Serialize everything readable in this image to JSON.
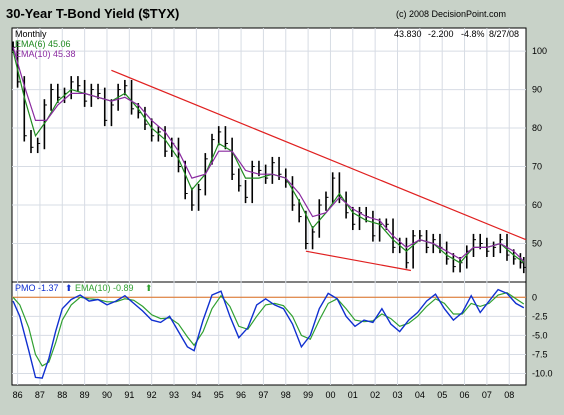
{
  "header": {
    "title": "30-Year T-Bond Yield ($TYX)",
    "copyright": "(c) 2008 DecisionPoint.com",
    "period": "Monthly",
    "quote_last": "43.830",
    "quote_change": "-2.200",
    "quote_pct": "-4.8%",
    "quote_date": "8/27/08"
  },
  "colors": {
    "background": "#c8d2c8",
    "panel": "#ffffff",
    "grid": "#d7dce4",
    "bar": "#000000",
    "ema_short": "#1f8a1f",
    "ema_long": "#8a2aa0",
    "trendline": "#e02020",
    "pmo": "#1030d0",
    "pmo_signal": "#30a030",
    "zero_line": "#e07020"
  },
  "legend": {
    "ema6": "EMA(6) 45.06",
    "ema10": "EMA(10) 45.38",
    "pmo": "PMO -1.37",
    "pmo_arrow": "⬆",
    "pmo_ema": "EMA(10) -0.89",
    "pmo_ema_arrow": "⬆"
  },
  "chart_data": [
    {
      "type": "line",
      "panel": "price",
      "title": "30-Year T-Bond Yield ($TYX)",
      "ylim": [
        40,
        106
      ],
      "y_ticks": [
        50,
        60,
        70,
        80,
        90,
        100
      ],
      "x_range": [
        1985.75,
        2008.75
      ],
      "x_tick_labels": [
        "86",
        "87",
        "88",
        "89",
        "90",
        "91",
        "92",
        "93",
        "94",
        "95",
        "96",
        "97",
        "98",
        "99",
        "00",
        "01",
        "02",
        "03",
        "04",
        "05",
        "06",
        "07",
        "08"
      ],
      "grid": true,
      "series": [
        {
          "role": "price",
          "x": [
            1985.8,
            1986.0,
            1986.3,
            1986.6,
            1986.9,
            1987.2,
            1987.5,
            1987.8,
            1988.1,
            1988.4,
            1988.7,
            1989.0,
            1989.3,
            1989.6,
            1989.9,
            1990.2,
            1990.5,
            1990.8,
            1991.1,
            1991.4,
            1991.7,
            1992.0,
            1992.3,
            1992.6,
            1992.9,
            1993.2,
            1993.5,
            1993.8,
            1994.1,
            1994.4,
            1994.7,
            1995.0,
            1995.3,
            1995.6,
            1995.9,
            1996.2,
            1996.5,
            1996.8,
            1997.1,
            1997.4,
            1997.7,
            1998.0,
            1998.3,
            1998.6,
            1998.9,
            1999.2,
            1999.5,
            1999.8,
            2000.1,
            2000.4,
            2000.7,
            2001.0,
            2001.3,
            2001.6,
            2001.9,
            2002.2,
            2002.5,
            2002.8,
            2003.1,
            2003.4,
            2003.7,
            2004.0,
            2004.3,
            2004.6,
            2004.9,
            2005.2,
            2005.5,
            2005.8,
            2006.1,
            2006.4,
            2006.7,
            2007.0,
            2007.3,
            2007.6,
            2007.9,
            2008.2,
            2008.5,
            2008.65
          ],
          "values": [
            101,
            92,
            78,
            75,
            76,
            86,
            90,
            88,
            89,
            92,
            91,
            87,
            90,
            89,
            82,
            86,
            90,
            91,
            85,
            84,
            81,
            78,
            79,
            74,
            76,
            70,
            63,
            60,
            64,
            72,
            77,
            79,
            76,
            68,
            65,
            62,
            70,
            69,
            67,
            71,
            68,
            66,
            60,
            57,
            50,
            53,
            60,
            62,
            67,
            62,
            58,
            55,
            58,
            57,
            52,
            55,
            55,
            49,
            50,
            45,
            52,
            52,
            49,
            51,
            49,
            46,
            44,
            45,
            48,
            51,
            50,
            48,
            49,
            51,
            47,
            46,
            45,
            43.8
          ]
        },
        {
          "name": "EMA(6)",
          "x": [
            1985.8,
            1986.3,
            1986.8,
            1987.3,
            1987.8,
            1988.4,
            1989.0,
            1989.6,
            1990.2,
            1990.8,
            1991.4,
            1992.0,
            1992.6,
            1993.2,
            1993.8,
            1994.4,
            1995.0,
            1995.6,
            1996.2,
            1996.8,
            1997.4,
            1998.0,
            1998.6,
            1999.2,
            1999.8,
            2000.4,
            2001.0,
            2001.6,
            2002.2,
            2002.8,
            2003.4,
            2004.0,
            2004.6,
            2005.2,
            2005.8,
            2006.4,
            2007.0,
            2007.6,
            2008.2,
            2008.65
          ],
          "values": [
            100,
            88,
            78,
            82,
            87,
            90,
            89,
            88,
            87,
            89,
            85,
            80,
            77,
            72,
            64,
            68,
            76,
            74,
            67,
            67,
            68,
            67,
            61,
            54,
            58,
            63,
            58,
            56,
            55,
            51,
            48,
            51,
            50,
            47,
            45,
            49,
            49,
            50,
            47,
            45.06
          ]
        },
        {
          "name": "EMA(10)",
          "x": [
            1985.8,
            1986.3,
            1986.8,
            1987.3,
            1987.8,
            1988.4,
            1989.0,
            1989.6,
            1990.2,
            1990.8,
            1991.4,
            1992.0,
            1992.6,
            1993.2,
            1993.8,
            1994.4,
            1995.0,
            1995.6,
            1996.2,
            1996.8,
            1997.4,
            1998.0,
            1998.6,
            1999.2,
            1999.8,
            2000.4,
            2001.0,
            2001.6,
            2002.2,
            2002.8,
            2003.4,
            2004.0,
            2004.6,
            2005.2,
            2005.8,
            2006.4,
            2007.0,
            2007.6,
            2008.2,
            2008.65
          ],
          "values": [
            101,
            91,
            82,
            82,
            86,
            89,
            89,
            88,
            87,
            88,
            86,
            82,
            79,
            74,
            67,
            68,
            74,
            74,
            69,
            68,
            68,
            67,
            63,
            57,
            58,
            62,
            59,
            57,
            56,
            52,
            49,
            51,
            50,
            48,
            46,
            49,
            49,
            50,
            48,
            45.38
          ]
        },
        {
          "role": "upper-trendline",
          "x": [
            1990.2,
            2008.75
          ],
          "values": [
            95,
            51
          ]
        },
        {
          "role": "lower-trendline",
          "x": [
            1998.9,
            2003.6
          ],
          "values": [
            48,
            43
          ]
        }
      ]
    },
    {
      "type": "line",
      "panel": "pmo",
      "ylim": [
        -11.5,
        2.0
      ],
      "y_ticks": [
        0,
        -2.5,
        -5,
        -7.5,
        -10
      ],
      "y_tick_labels": [
        "0",
        "-2.5",
        "-5.0",
        "-7.5",
        "-10.0"
      ],
      "grid": true,
      "series": [
        {
          "name": "PMO",
          "x": [
            1985.8,
            1986.1,
            1986.5,
            1986.8,
            1987.1,
            1987.4,
            1987.7,
            1988.0,
            1988.4,
            1988.8,
            1989.2,
            1989.6,
            1990.0,
            1990.4,
            1990.8,
            1991.2,
            1991.6,
            1992.0,
            1992.4,
            1992.8,
            1993.2,
            1993.6,
            1993.9,
            1994.3,
            1994.7,
            1995.1,
            1995.5,
            1995.9,
            1996.3,
            1996.7,
            1997.1,
            1997.5,
            1997.9,
            1998.3,
            1998.7,
            1999.1,
            1999.5,
            1999.9,
            2000.3,
            2000.7,
            2001.1,
            2001.5,
            2001.9,
            2002.3,
            2002.7,
            2003.1,
            2003.5,
            2003.9,
            2004.3,
            2004.7,
            2005.1,
            2005.5,
            2005.9,
            2006.3,
            2006.7,
            2007.1,
            2007.5,
            2007.9,
            2008.3,
            2008.65
          ],
          "values": [
            -0.5,
            -2.5,
            -7.0,
            -10.5,
            -10.6,
            -8.0,
            -4.5,
            -1.5,
            -0.3,
            0.3,
            -0.5,
            -0.3,
            -1.0,
            -0.5,
            0.2,
            -0.8,
            -1.8,
            -3.0,
            -3.3,
            -2.5,
            -4.5,
            -6.5,
            -7.0,
            -3.0,
            0.3,
            0.8,
            -2.5,
            -5.3,
            -4.0,
            -1.0,
            -0.2,
            -1.0,
            -1.5,
            -3.5,
            -6.5,
            -5.0,
            -1.5,
            0.5,
            -0.2,
            -2.5,
            -3.8,
            -3.0,
            -3.3,
            -1.5,
            -3.5,
            -4.5,
            -3.0,
            -2.0,
            -0.5,
            0.4,
            -1.5,
            -3.0,
            -2.0,
            0.2,
            -2.0,
            -0.5,
            1.0,
            0.5,
            -0.8,
            -1.37
          ]
        },
        {
          "name": "EMA(10)",
          "x": [
            1985.8,
            1986.1,
            1986.5,
            1986.8,
            1987.1,
            1987.4,
            1987.7,
            1988.0,
            1988.4,
            1988.8,
            1989.2,
            1989.6,
            1990.0,
            1990.4,
            1990.8,
            1991.2,
            1991.6,
            1992.0,
            1992.4,
            1992.8,
            1993.2,
            1993.6,
            1993.9,
            1994.3,
            1994.7,
            1995.1,
            1995.5,
            1995.9,
            1996.3,
            1996.7,
            1997.1,
            1997.5,
            1997.9,
            1998.3,
            1998.7,
            1999.1,
            1999.5,
            1999.9,
            2000.3,
            2000.7,
            2001.1,
            2001.5,
            2001.9,
            2002.3,
            2002.7,
            2003.1,
            2003.5,
            2003.9,
            2004.3,
            2004.7,
            2005.1,
            2005.5,
            2005.9,
            2006.3,
            2006.7,
            2007.1,
            2007.5,
            2007.9,
            2008.3,
            2008.65
          ],
          "values": [
            0.0,
            -1.0,
            -4.0,
            -7.5,
            -9.0,
            -8.5,
            -6.0,
            -3.0,
            -1.0,
            0.0,
            -0.2,
            -0.3,
            -0.6,
            -0.6,
            -0.2,
            -0.4,
            -1.2,
            -2.3,
            -2.8,
            -2.7,
            -3.5,
            -5.2,
            -6.3,
            -4.5,
            -1.5,
            0.2,
            -1.2,
            -3.8,
            -4.2,
            -2.5,
            -1.0,
            -0.8,
            -1.1,
            -2.5,
            -5.0,
            -5.5,
            -3.0,
            -0.8,
            -0.2,
            -1.5,
            -3.0,
            -3.2,
            -3.1,
            -2.2,
            -2.8,
            -3.8,
            -3.4,
            -2.5,
            -1.2,
            -0.2,
            -0.8,
            -2.2,
            -2.2,
            -0.8,
            -1.2,
            -0.8,
            0.3,
            0.6,
            -0.2,
            -0.89
          ]
        }
      ]
    }
  ]
}
